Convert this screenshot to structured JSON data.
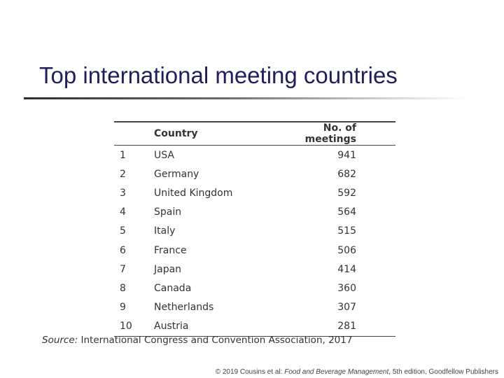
{
  "slide": {
    "title": "Top international meeting countries"
  },
  "table": {
    "headers": {
      "rank": "",
      "country": "Country",
      "count": "No. of meetings"
    },
    "rows": [
      {
        "rank": "1",
        "country": "USA",
        "count": "941"
      },
      {
        "rank": "2",
        "country": "Germany",
        "count": "682"
      },
      {
        "rank": "3",
        "country": "United Kingdom",
        "count": "592"
      },
      {
        "rank": "4",
        "country": "Spain",
        "count": "564"
      },
      {
        "rank": "5",
        "country": "Italy",
        "count": "515"
      },
      {
        "rank": "6",
        "country": "France",
        "count": "506"
      },
      {
        "rank": "7",
        "country": "Japan",
        "count": "414"
      },
      {
        "rank": "8",
        "country": "Canada",
        "count": "360"
      },
      {
        "rank": "9",
        "country": "Netherlands",
        "count": "307"
      },
      {
        "rank": "10",
        "country": "Austria",
        "count": "281"
      }
    ]
  },
  "source": {
    "label": "Source:",
    "text": "International Congress and Convention Association, 2017"
  },
  "footer": {
    "prefix": "© 2019 Cousins et al: ",
    "book_title": "Food and Beverage Management",
    "suffix": ", 5th edition, Goodfellow Publishers"
  }
}
